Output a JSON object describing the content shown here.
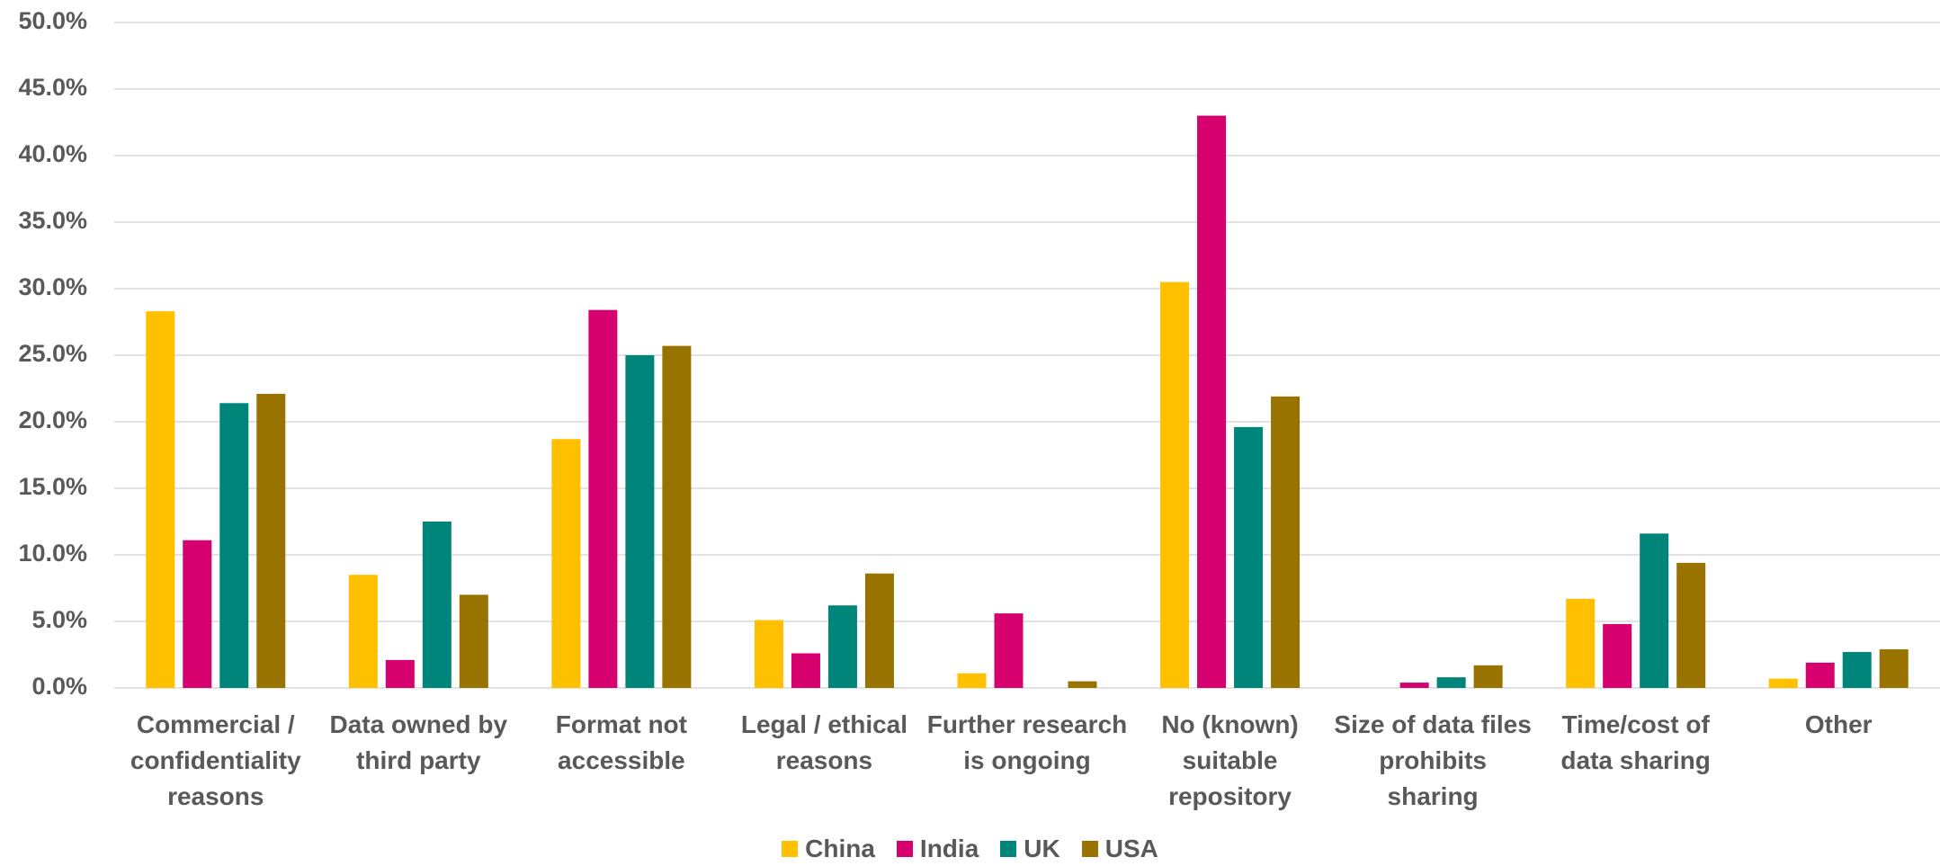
{
  "chart_data": {
    "type": "bar",
    "categories": [
      "Commercial / confidentiality reasons",
      "Data owned by third party",
      "Format not accessible",
      "Legal / ethical reasons",
      "Further research is ongoing",
      "No (known) suitable repository",
      "Size of data files prohibits sharing",
      "Time/cost of data sharing",
      "Other"
    ],
    "series": [
      {
        "name": "China",
        "color": "#FFC000",
        "values": [
          28.3,
          8.5,
          18.7,
          5.1,
          1.1,
          30.5,
          0,
          6.7,
          0.7
        ]
      },
      {
        "name": "India",
        "color": "#D6006F",
        "values": [
          11.1,
          2.1,
          28.4,
          2.6,
          5.6,
          43.0,
          0.4,
          4.8,
          1.9
        ]
      },
      {
        "name": "UK",
        "color": "#00857A",
        "values": [
          21.4,
          12.5,
          25.0,
          6.2,
          0,
          19.6,
          0.8,
          11.6,
          2.7
        ]
      },
      {
        "name": "USA",
        "color": "#997300",
        "values": [
          22.1,
          7.0,
          25.7,
          8.6,
          0.5,
          21.9,
          1.7,
          9.4,
          2.9
        ]
      }
    ],
    "ylim": [
      0,
      50
    ],
    "yticks": [
      {
        "value": 0,
        "label": "0.0%"
      },
      {
        "value": 5,
        "label": "5.0%"
      },
      {
        "value": 10,
        "label": "10.0%"
      },
      {
        "value": 15,
        "label": "15.0%"
      },
      {
        "value": 20,
        "label": "20.0%"
      },
      {
        "value": 25,
        "label": "25.0%"
      },
      {
        "value": 30,
        "label": "30.0%"
      },
      {
        "value": 35,
        "label": "35.0%"
      },
      {
        "value": 40,
        "label": "40.0%"
      },
      {
        "value": 45,
        "label": "45.0%"
      },
      {
        "value": 50,
        "label": "50.0%"
      }
    ],
    "grid": true,
    "legend": "bottom"
  }
}
